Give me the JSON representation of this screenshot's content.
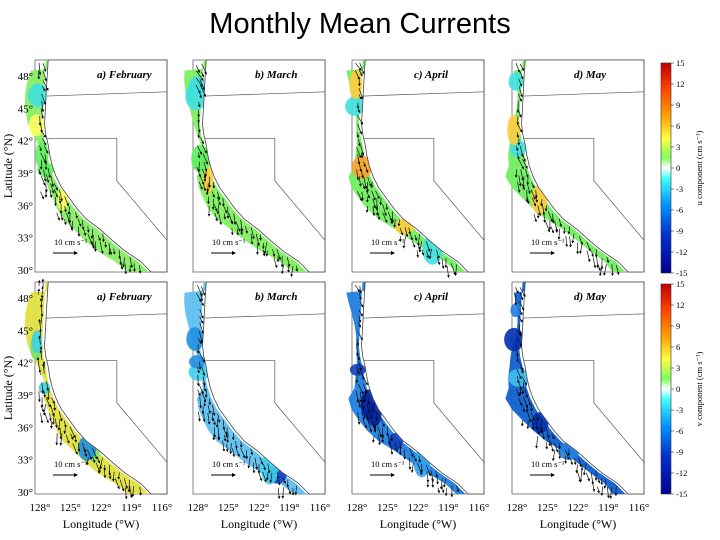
{
  "title": "Monthly Mean Currents",
  "panels_top": [
    "a) February",
    "b) March",
    "c) April",
    "d) May"
  ],
  "panels_bottom": [
    "a) February",
    "b) March",
    "c) April",
    "d) May"
  ],
  "y_axis": {
    "label": "Latitude (°N)",
    "ticks": [
      "48°",
      "45°",
      "42°",
      "39°",
      "36°",
      "33°",
      "30°"
    ]
  },
  "x_axis": {
    "label": "Longitude (°W)",
    "ticks": [
      "128°",
      "125°",
      "122°",
      "119°",
      "116°"
    ]
  },
  "scale_label": "10 cm s⁻¹",
  "colorbar_top": {
    "label": "u component (cm s⁻¹)",
    "ticks": [
      "15",
      "12",
      "9",
      "6",
      "3",
      "0",
      "-3",
      "-6",
      "-9",
      "-12",
      "-15"
    ]
  },
  "colorbar_bottom": {
    "label": "v component (cm s⁻¹)",
    "ticks": [
      "15",
      "12",
      "9",
      "6",
      "3",
      "0",
      "-3",
      "-6",
      "-9",
      "-12",
      "-15"
    ]
  },
  "colors": {
    "high": "#d01010",
    "mid": "#ffff40",
    "zero": "#ffffff",
    "low": "#1010c0"
  }
}
